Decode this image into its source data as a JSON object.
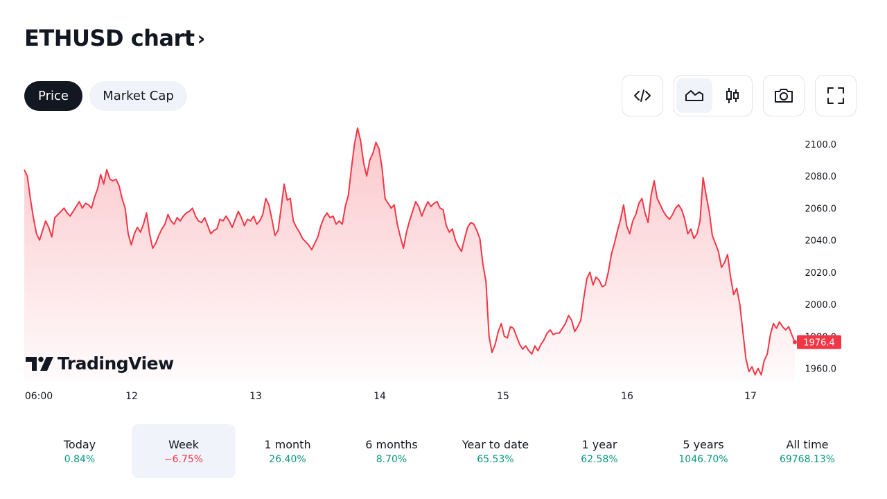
{
  "header": {
    "title": "ETHUSD chart",
    "chevron": "›"
  },
  "tabs": [
    {
      "label": "Price",
      "active": true
    },
    {
      "label": "Market Cap",
      "active": false
    }
  ],
  "toolbar": {
    "embed_icon": "code-icon",
    "area_icon": "area-chart-icon",
    "candle_icon": "candlestick-icon",
    "snapshot_icon": "camera-icon",
    "fullscreen_icon": "fullscreen-icon",
    "active_style": "area"
  },
  "colors": {
    "line": "#f23645",
    "positive": "#089981",
    "negative": "#f23645",
    "dark": "#131722",
    "light_bg": "#f0f3fa"
  },
  "watermark": {
    "text": "TradingView"
  },
  "chart_data": {
    "type": "area",
    "symbol": "ETHUSD",
    "ylim": [
      1952,
      2112
    ],
    "y_ticks": [
      "2100.0",
      "2080.0",
      "2060.0",
      "2040.0",
      "2020.0",
      "2000.0",
      "1980.0",
      "1960.0"
    ],
    "x_ticks": [
      "06:00",
      "12",
      "13",
      "14",
      "15",
      "16",
      "17"
    ],
    "last_price": "1976.4",
    "series": [
      {
        "values": [
          2084,
          2080,
          2066,
          2054,
          2044,
          2040,
          2046,
          2052,
          2048,
          2042,
          2054,
          2056,
          2058,
          2060,
          2057,
          2055,
          2058,
          2061,
          2064,
          2060,
          2063,
          2062,
          2060,
          2067,
          2072,
          2081,
          2075,
          2084,
          2078,
          2077,
          2078,
          2074,
          2066,
          2060,
          2044,
          2037,
          2044,
          2048,
          2045,
          2050,
          2057,
          2044,
          2035,
          2038,
          2043,
          2047,
          2050,
          2056,
          2052,
          2050,
          2054,
          2052,
          2055,
          2057,
          2058,
          2060,
          2055,
          2052,
          2051,
          2054,
          2049,
          2044,
          2046,
          2047,
          2053,
          2052,
          2055,
          2052,
          2048,
          2053,
          2058,
          2054,
          2049,
          2053,
          2052,
          2055,
          2050,
          2052,
          2056,
          2066,
          2062,
          2053,
          2043,
          2046,
          2060,
          2075,
          2065,
          2066,
          2052,
          2048,
          2045,
          2041,
          2039,
          2037,
          2034,
          2038,
          2042,
          2049,
          2054,
          2057,
          2054,
          2055,
          2050,
          2052,
          2050,
          2061,
          2068,
          2085,
          2100,
          2110,
          2102,
          2088,
          2080,
          2090,
          2094,
          2101,
          2097,
          2085,
          2066,
          2063,
          2060,
          2062,
          2050,
          2042,
          2035,
          2045,
          2052,
          2058,
          2064,
          2061,
          2055,
          2060,
          2064,
          2061,
          2063,
          2064,
          2060,
          2059,
          2049,
          2045,
          2047,
          2040,
          2036,
          2033,
          2041,
          2048,
          2051,
          2050,
          2046,
          2041,
          2025,
          2014,
          1980,
          1970,
          1975,
          1983,
          1988,
          1980,
          1979,
          1986,
          1985,
          1980,
          1975,
          1972,
          1974,
          1971,
          1969,
          1974,
          1971,
          1975,
          1978,
          1982,
          1984,
          1981,
          1982,
          1982,
          1985,
          1988,
          1993,
          1990,
          1983,
          1986,
          1990,
          2004,
          2016,
          2020,
          2012,
          2017,
          2015,
          2011,
          2012,
          2020,
          2031,
          2038,
          2046,
          2053,
          2062,
          2049,
          2044,
          2052,
          2056,
          2063,
          2066,
          2057,
          2051,
          2068,
          2077,
          2066,
          2062,
          2058,
          2055,
          2053,
          2056,
          2060,
          2062,
          2059,
          2053,
          2044,
          2047,
          2041,
          2044,
          2052,
          2079,
          2068,
          2058,
          2043,
          2038,
          2033,
          2023,
          2026,
          2031,
          2017,
          2006,
          2010,
          2000,
          1983,
          1966,
          1958,
          1961,
          1956,
          1960,
          1956,
          1965,
          1969,
          1981,
          1988,
          1985,
          1989,
          1986,
          1984,
          1986,
          1981,
          1976.4
        ]
      }
    ]
  },
  "periods": [
    {
      "label": "Today",
      "value": "0.84%",
      "sign": "pos",
      "active": false
    },
    {
      "label": "Week",
      "value": "−6.75%",
      "sign": "neg",
      "active": true
    },
    {
      "label": "1 month",
      "value": "26.40%",
      "sign": "pos",
      "active": false
    },
    {
      "label": "6 months",
      "value": "8.70%",
      "sign": "pos",
      "active": false
    },
    {
      "label": "Year to date",
      "value": "65.53%",
      "sign": "pos",
      "active": false
    },
    {
      "label": "1 year",
      "value": "62.58%",
      "sign": "pos",
      "active": false
    },
    {
      "label": "5 years",
      "value": "1046.70%",
      "sign": "pos",
      "active": false
    },
    {
      "label": "All time",
      "value": "69768.13%",
      "sign": "pos",
      "active": false
    }
  ]
}
